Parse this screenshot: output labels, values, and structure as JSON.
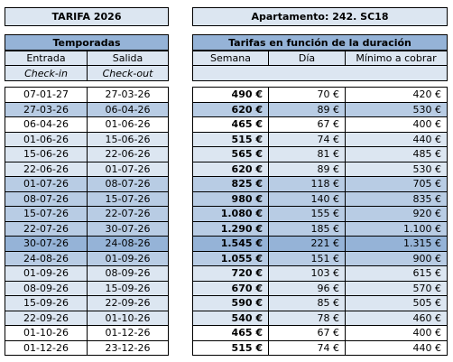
{
  "header": {
    "title": "TARIFA 2026",
    "apartment": "Apartamento: 242. SC18"
  },
  "table": {
    "left_heading": "Temporadas",
    "right_heading": "Tarifas en función de la duración",
    "columns": [
      "Entrada",
      "Salida",
      "Semana",
      "Día",
      "Mínimo a cobrar"
    ],
    "subheadings": [
      "Check-in",
      "Check-out"
    ],
    "rows": [
      [
        "07-01-27",
        "27-03-26",
        "490 €",
        "70 €",
        "420 €"
      ],
      [
        "27-03-26",
        "06-04-26",
        "620 €",
        "89 €",
        "530 €"
      ],
      [
        "06-04-26",
        "01-06-26",
        "465 €",
        "67 €",
        "400 €"
      ],
      [
        "01-06-26",
        "15-06-26",
        "515 €",
        "74 €",
        "440 €"
      ],
      [
        "15-06-26",
        "22-06-26",
        "565 €",
        "81 €",
        "485 €"
      ],
      [
        "22-06-26",
        "01-07-26",
        "620 €",
        "89 €",
        "530 €"
      ],
      [
        "01-07-26",
        "08-07-26",
        "825 €",
        "118 €",
        "705 €"
      ],
      [
        "08-07-26",
        "15-07-26",
        "980 €",
        "140 €",
        "835 €"
      ],
      [
        "15-07-26",
        "22-07-26",
        "1.080 €",
        "155 €",
        "920 €"
      ],
      [
        "22-07-26",
        "30-07-26",
        "1.290 €",
        "185 €",
        "1.100 €"
      ],
      [
        "30-07-26",
        "24-08-26",
        "1.545 €",
        "221 €",
        "1.315 €"
      ],
      [
        "24-08-26",
        "01-09-26",
        "1.055 €",
        "151 €",
        "900 €"
      ],
      [
        "01-09-26",
        "08-09-26",
        "720 €",
        "103 €",
        "615 €"
      ],
      [
        "08-09-26",
        "15-09-26",
        "670 €",
        "96 €",
        "570 €"
      ],
      [
        "15-09-26",
        "22-09-26",
        "590 €",
        "85 €",
        "505 €"
      ],
      [
        "22-09-26",
        "01-10-26",
        "540 €",
        "78 €",
        "460 €"
      ],
      [
        "01-10-26",
        "01-12-26",
        "465 €",
        "67 €",
        "400 €"
      ],
      [
        "01-12-26",
        "23-12-26",
        "515 €",
        "74 €",
        "440 €"
      ]
    ]
  }
}
